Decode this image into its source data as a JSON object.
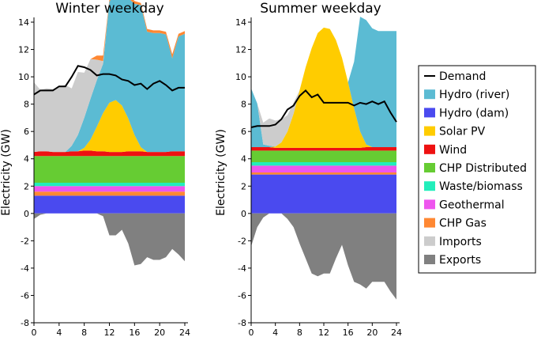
{
  "figure": {
    "legend_position": "right"
  },
  "chart_data": [
    {
      "type": "area",
      "title": "Winter weekday",
      "ylabel": "Electricity (GW)",
      "xlabel": "",
      "xlim": [
        0,
        24
      ],
      "ylim": [
        -8,
        14
      ],
      "xticks": [
        "0",
        "4",
        "8",
        "12",
        "16",
        "20",
        "24"
      ],
      "yticks": [
        "-8",
        "-6",
        "-4",
        "-2",
        "0",
        "2",
        "4",
        "6",
        "8",
        "10",
        "12",
        "14"
      ],
      "x": [
        0,
        1,
        2,
        3,
        4,
        5,
        6,
        7,
        8,
        9,
        10,
        11,
        12,
        13,
        14,
        15,
        16,
        17,
        18,
        19,
        20,
        21,
        22,
        23,
        24
      ],
      "stacked_series": [
        {
          "name": "Hydro (dam)",
          "values": [
            1.3,
            1.3,
            1.3,
            1.3,
            1.3,
            1.3,
            1.3,
            1.3,
            1.3,
            1.3,
            1.3,
            1.3,
            1.3,
            1.3,
            1.3,
            1.3,
            1.3,
            1.3,
            1.3,
            1.3,
            1.3,
            1.3,
            1.3,
            1.3,
            1.3
          ]
        },
        {
          "name": "CHP Gas",
          "values": [
            0.3,
            0.3,
            0.3,
            0.3,
            0.3,
            0.3,
            0.3,
            0.3,
            0.3,
            0.3,
            0.3,
            0.3,
            0.3,
            0.3,
            0.3,
            0.3,
            0.3,
            0.3,
            0.3,
            0.3,
            0.3,
            0.3,
            0.3,
            0.3,
            0.3
          ]
        },
        {
          "name": "Geothermal",
          "values": [
            0.4,
            0.4,
            0.4,
            0.4,
            0.4,
            0.4,
            0.4,
            0.4,
            0.4,
            0.4,
            0.4,
            0.4,
            0.4,
            0.4,
            0.4,
            0.4,
            0.4,
            0.4,
            0.4,
            0.4,
            0.4,
            0.4,
            0.4,
            0.4,
            0.4
          ]
        },
        {
          "name": "Waste/biomass",
          "values": [
            0.25,
            0.25,
            0.25,
            0.25,
            0.25,
            0.25,
            0.25,
            0.25,
            0.25,
            0.25,
            0.25,
            0.25,
            0.25,
            0.25,
            0.25,
            0.25,
            0.25,
            0.25,
            0.25,
            0.25,
            0.25,
            0.25,
            0.25,
            0.25,
            0.25
          ]
        },
        {
          "name": "CHP Distributed",
          "values": [
            1.95,
            1.95,
            1.95,
            1.95,
            1.95,
            1.95,
            1.95,
            1.95,
            1.95,
            1.95,
            1.95,
            1.95,
            1.95,
            1.95,
            1.95,
            1.95,
            1.95,
            1.95,
            1.95,
            1.95,
            1.95,
            1.95,
            1.95,
            1.95,
            1.95
          ]
        },
        {
          "name": "Wind",
          "values": [
            0.3,
            0.35,
            0.35,
            0.3,
            0.3,
            0.3,
            0.35,
            0.35,
            0.4,
            0.4,
            0.35,
            0.35,
            0.3,
            0.3,
            0.3,
            0.35,
            0.35,
            0.35,
            0.3,
            0.3,
            0.3,
            0.3,
            0.35,
            0.35,
            0.35
          ]
        },
        {
          "name": "Solar PV",
          "values": [
            0,
            0,
            0,
            0,
            0,
            0,
            0,
            0,
            0.2,
            0.8,
            1.8,
            2.8,
            3.6,
            3.8,
            3.4,
            2.4,
            1.2,
            0.3,
            0,
            0,
            0,
            0,
            0,
            0,
            0
          ]
        },
        {
          "name": "Hydro (river)",
          "values": [
            0,
            0,
            0,
            0,
            0,
            0,
            0.4,
            1.2,
            2.2,
            3.0,
            3.4,
            3.6,
            7.4,
            7.8,
            8.2,
            8.8,
            9.6,
            10.4,
            8.8,
            8.7,
            8.7,
            8.6,
            6.8,
            8.4,
            8.6
          ]
        },
        {
          "name": "Imports",
          "values": [
            5.1,
            4.5,
            4.6,
            4.6,
            4.8,
            4.9,
            4.2,
            4.6,
            3.3,
            2.9,
            1.5,
            0.2,
            0,
            0,
            0,
            0,
            0,
            0,
            0,
            0,
            0,
            0,
            0,
            0,
            0
          ]
        }
      ],
      "curtailed_series": {
        "name": "CHP Gas",
        "values": [
          0,
          0,
          0,
          0,
          0,
          0,
          0,
          0,
          0,
          0,
          0.3,
          0.4,
          0.15,
          0.2,
          0.2,
          0.3,
          0.2,
          0.15,
          0.2,
          0.2,
          0.2,
          0.2,
          0.3,
          0.2,
          0.2
        ]
      },
      "exports": {
        "name": "Exports",
        "values": [
          0.4,
          0.1,
          0,
          0,
          0,
          0,
          0,
          0,
          0,
          0,
          0,
          0.2,
          1.6,
          1.6,
          1.2,
          2.2,
          3.8,
          3.7,
          3.2,
          3.4,
          3.4,
          3.2,
          2.6,
          3.0,
          3.5
        ]
      },
      "demand": {
        "name": "Demand",
        "values": [
          8.7,
          9.0,
          9.0,
          9.0,
          9.3,
          9.3,
          10.0,
          10.8,
          10.7,
          10.5,
          10.1,
          10.2,
          10.2,
          10.1,
          9.8,
          9.7,
          9.4,
          9.5,
          9.1,
          9.5,
          9.7,
          9.4,
          9.0,
          9.2,
          9.2
        ]
      }
    },
    {
      "type": "area",
      "title": "Summer weekday",
      "ylabel": "Electricity (GW)",
      "xlabel": "",
      "xlim": [
        0,
        24
      ],
      "ylim": [
        -8,
        14
      ],
      "xticks": [
        "0",
        "4",
        "8",
        "12",
        "16",
        "20",
        "24"
      ],
      "yticks": [
        "-8",
        "-6",
        "-4",
        "-2",
        "0",
        "2",
        "4",
        "6",
        "8",
        "10",
        "12",
        "14"
      ],
      "x": [
        0,
        1,
        2,
        3,
        4,
        5,
        6,
        7,
        8,
        9,
        10,
        11,
        12,
        13,
        14,
        15,
        16,
        17,
        18,
        19,
        20,
        21,
        22,
        23,
        24
      ],
      "stacked_series": [
        {
          "name": "Hydro (dam)",
          "values": [
            2.85,
            2.85,
            2.85,
            2.85,
            2.85,
            2.85,
            2.85,
            2.85,
            2.85,
            2.85,
            2.85,
            2.85,
            2.85,
            2.85,
            2.85,
            2.85,
            2.85,
            2.85,
            2.85,
            2.85,
            2.85,
            2.85,
            2.85,
            2.85,
            2.85
          ]
        },
        {
          "name": "CHP Gas",
          "values": [
            0.15,
            0.15,
            0.15,
            0.15,
            0.15,
            0.15,
            0.15,
            0.15,
            0.15,
            0.15,
            0.15,
            0.15,
            0.15,
            0.15,
            0.15,
            0.15,
            0.15,
            0.15,
            0.15,
            0.15,
            0.15,
            0.15,
            0.15,
            0.15,
            0.15
          ]
        },
        {
          "name": "Geothermal",
          "values": [
            0.5,
            0.5,
            0.5,
            0.5,
            0.5,
            0.5,
            0.5,
            0.5,
            0.5,
            0.5,
            0.5,
            0.5,
            0.5,
            0.5,
            0.5,
            0.5,
            0.5,
            0.5,
            0.5,
            0.5,
            0.5,
            0.5,
            0.5,
            0.5,
            0.5
          ]
        },
        {
          "name": "Waste/biomass",
          "values": [
            0.25,
            0.25,
            0.25,
            0.25,
            0.25,
            0.25,
            0.25,
            0.25,
            0.25,
            0.25,
            0.25,
            0.25,
            0.25,
            0.25,
            0.25,
            0.25,
            0.25,
            0.25,
            0.25,
            0.25,
            0.25,
            0.25,
            0.25,
            0.25,
            0.25
          ]
        },
        {
          "name": "CHP Distributed",
          "values": [
            0.85,
            0.85,
            0.85,
            0.85,
            0.85,
            0.85,
            0.85,
            0.85,
            0.85,
            0.85,
            0.85,
            0.85,
            0.85,
            0.85,
            0.85,
            0.85,
            0.85,
            0.85,
            0.85,
            0.85,
            0.85,
            0.85,
            0.85,
            0.85,
            0.85
          ]
        },
        {
          "name": "Wind",
          "values": [
            0.25,
            0.25,
            0.25,
            0.25,
            0.2,
            0.2,
            0.2,
            0.2,
            0.2,
            0.2,
            0.2,
            0.2,
            0.2,
            0.2,
            0.2,
            0.2,
            0.2,
            0.2,
            0.2,
            0.25,
            0.25,
            0.25,
            0.25,
            0.25,
            0.25
          ]
        },
        {
          "name": "Solar PV",
          "values": [
            0,
            0,
            0,
            0,
            0.1,
            0.4,
            1.2,
            2.5,
            4.2,
            5.9,
            7.3,
            8.4,
            8.8,
            8.7,
            7.9,
            6.6,
            4.8,
            2.9,
            1.2,
            0.2,
            0,
            0,
            0,
            0,
            0
          ]
        },
        {
          "name": "Hydro (river)",
          "values": [
            4.3,
            3.2,
            0.2,
            0.1,
            0,
            0,
            0,
            0,
            0,
            0,
            0,
            0,
            0,
            0,
            0,
            0,
            0,
            3.4,
            8.4,
            9.1,
            8.7,
            8.5,
            8.5,
            8.5,
            8.5
          ]
        },
        {
          "name": "Imports",
          "values": [
            0,
            0,
            1.6,
            2.0,
            1.9,
            1.7,
            1.2,
            0.8,
            0,
            0,
            0,
            0,
            0,
            0,
            0,
            0,
            0,
            0,
            0,
            0,
            0,
            0,
            0,
            0,
            0
          ]
        }
      ],
      "curtailed_series": {
        "name": "CHP Gas",
        "values": [
          0,
          0,
          0,
          0,
          0,
          0,
          0,
          0,
          0,
          0,
          0,
          0,
          0,
          0,
          0,
          0,
          0,
          0,
          0,
          0,
          0,
          0,
          0,
          0,
          0
        ]
      },
      "exports": {
        "name": "Exports",
        "values": [
          2.4,
          1.0,
          0.3,
          0,
          0,
          0,
          0.4,
          1.0,
          2.2,
          3.3,
          4.4,
          4.6,
          4.4,
          4.4,
          3.3,
          2.3,
          3.8,
          5.0,
          5.2,
          5.5,
          5.0,
          5.0,
          5.0,
          5.7,
          6.3
        ]
      },
      "demand": {
        "name": "Demand",
        "values": [
          6.3,
          6.4,
          6.4,
          6.4,
          6.5,
          6.9,
          7.6,
          7.9,
          8.6,
          9.0,
          8.5,
          8.7,
          8.1,
          8.1,
          8.1,
          8.1,
          8.1,
          7.9,
          8.1,
          8.0,
          8.2,
          8.0,
          8.2,
          7.4,
          6.7
        ]
      }
    }
  ],
  "legend": {
    "items": [
      {
        "label": "Demand",
        "color": "#000000",
        "kind": "line"
      },
      {
        "label": "Hydro (river)",
        "color": "#5BBBD3",
        "kind": "patch"
      },
      {
        "label": "Hydro (dam)",
        "color": "#4A4AEF",
        "kind": "patch"
      },
      {
        "label": "Solar PV",
        "color": "#FFCC00",
        "kind": "patch"
      },
      {
        "label": "Wind",
        "color": "#EE1111",
        "kind": "patch"
      },
      {
        "label": "CHP Distributed",
        "color": "#66CC33",
        "kind": "patch"
      },
      {
        "label": "Waste/biomass",
        "color": "#22EEBB",
        "kind": "patch"
      },
      {
        "label": "Geothermal",
        "color": "#EE55EE",
        "kind": "patch"
      },
      {
        "label": "CHP Gas",
        "color": "#FF8833",
        "kind": "patch"
      },
      {
        "label": "Imports",
        "color": "#CCCCCC",
        "kind": "patch"
      },
      {
        "label": "Exports",
        "color": "#808080",
        "kind": "patch"
      }
    ]
  }
}
